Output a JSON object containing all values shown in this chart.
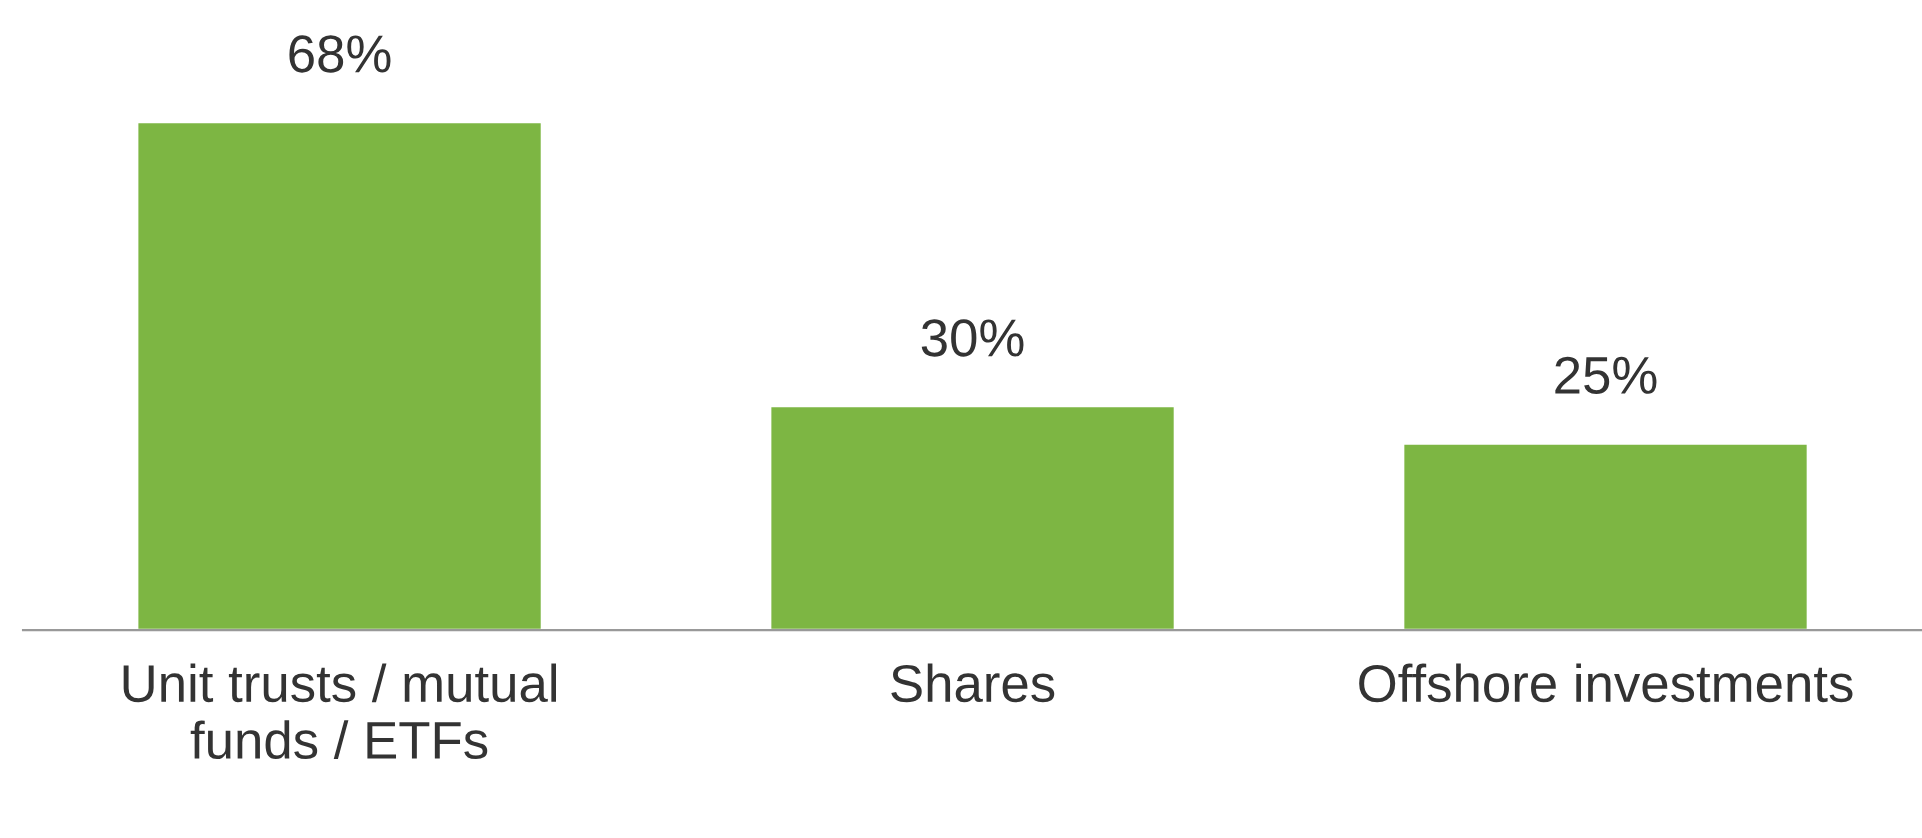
{
  "chart_data": {
    "type": "bar",
    "categories": [
      "Unit trusts / mutual funds / ETFs",
      "Shares",
      "Offshore investments"
    ],
    "values": [
      68,
      30,
      25
    ],
    "value_labels": [
      "68%",
      "30%",
      "25%"
    ],
    "color": "#7db643",
    "grid": false,
    "legend": false
  }
}
